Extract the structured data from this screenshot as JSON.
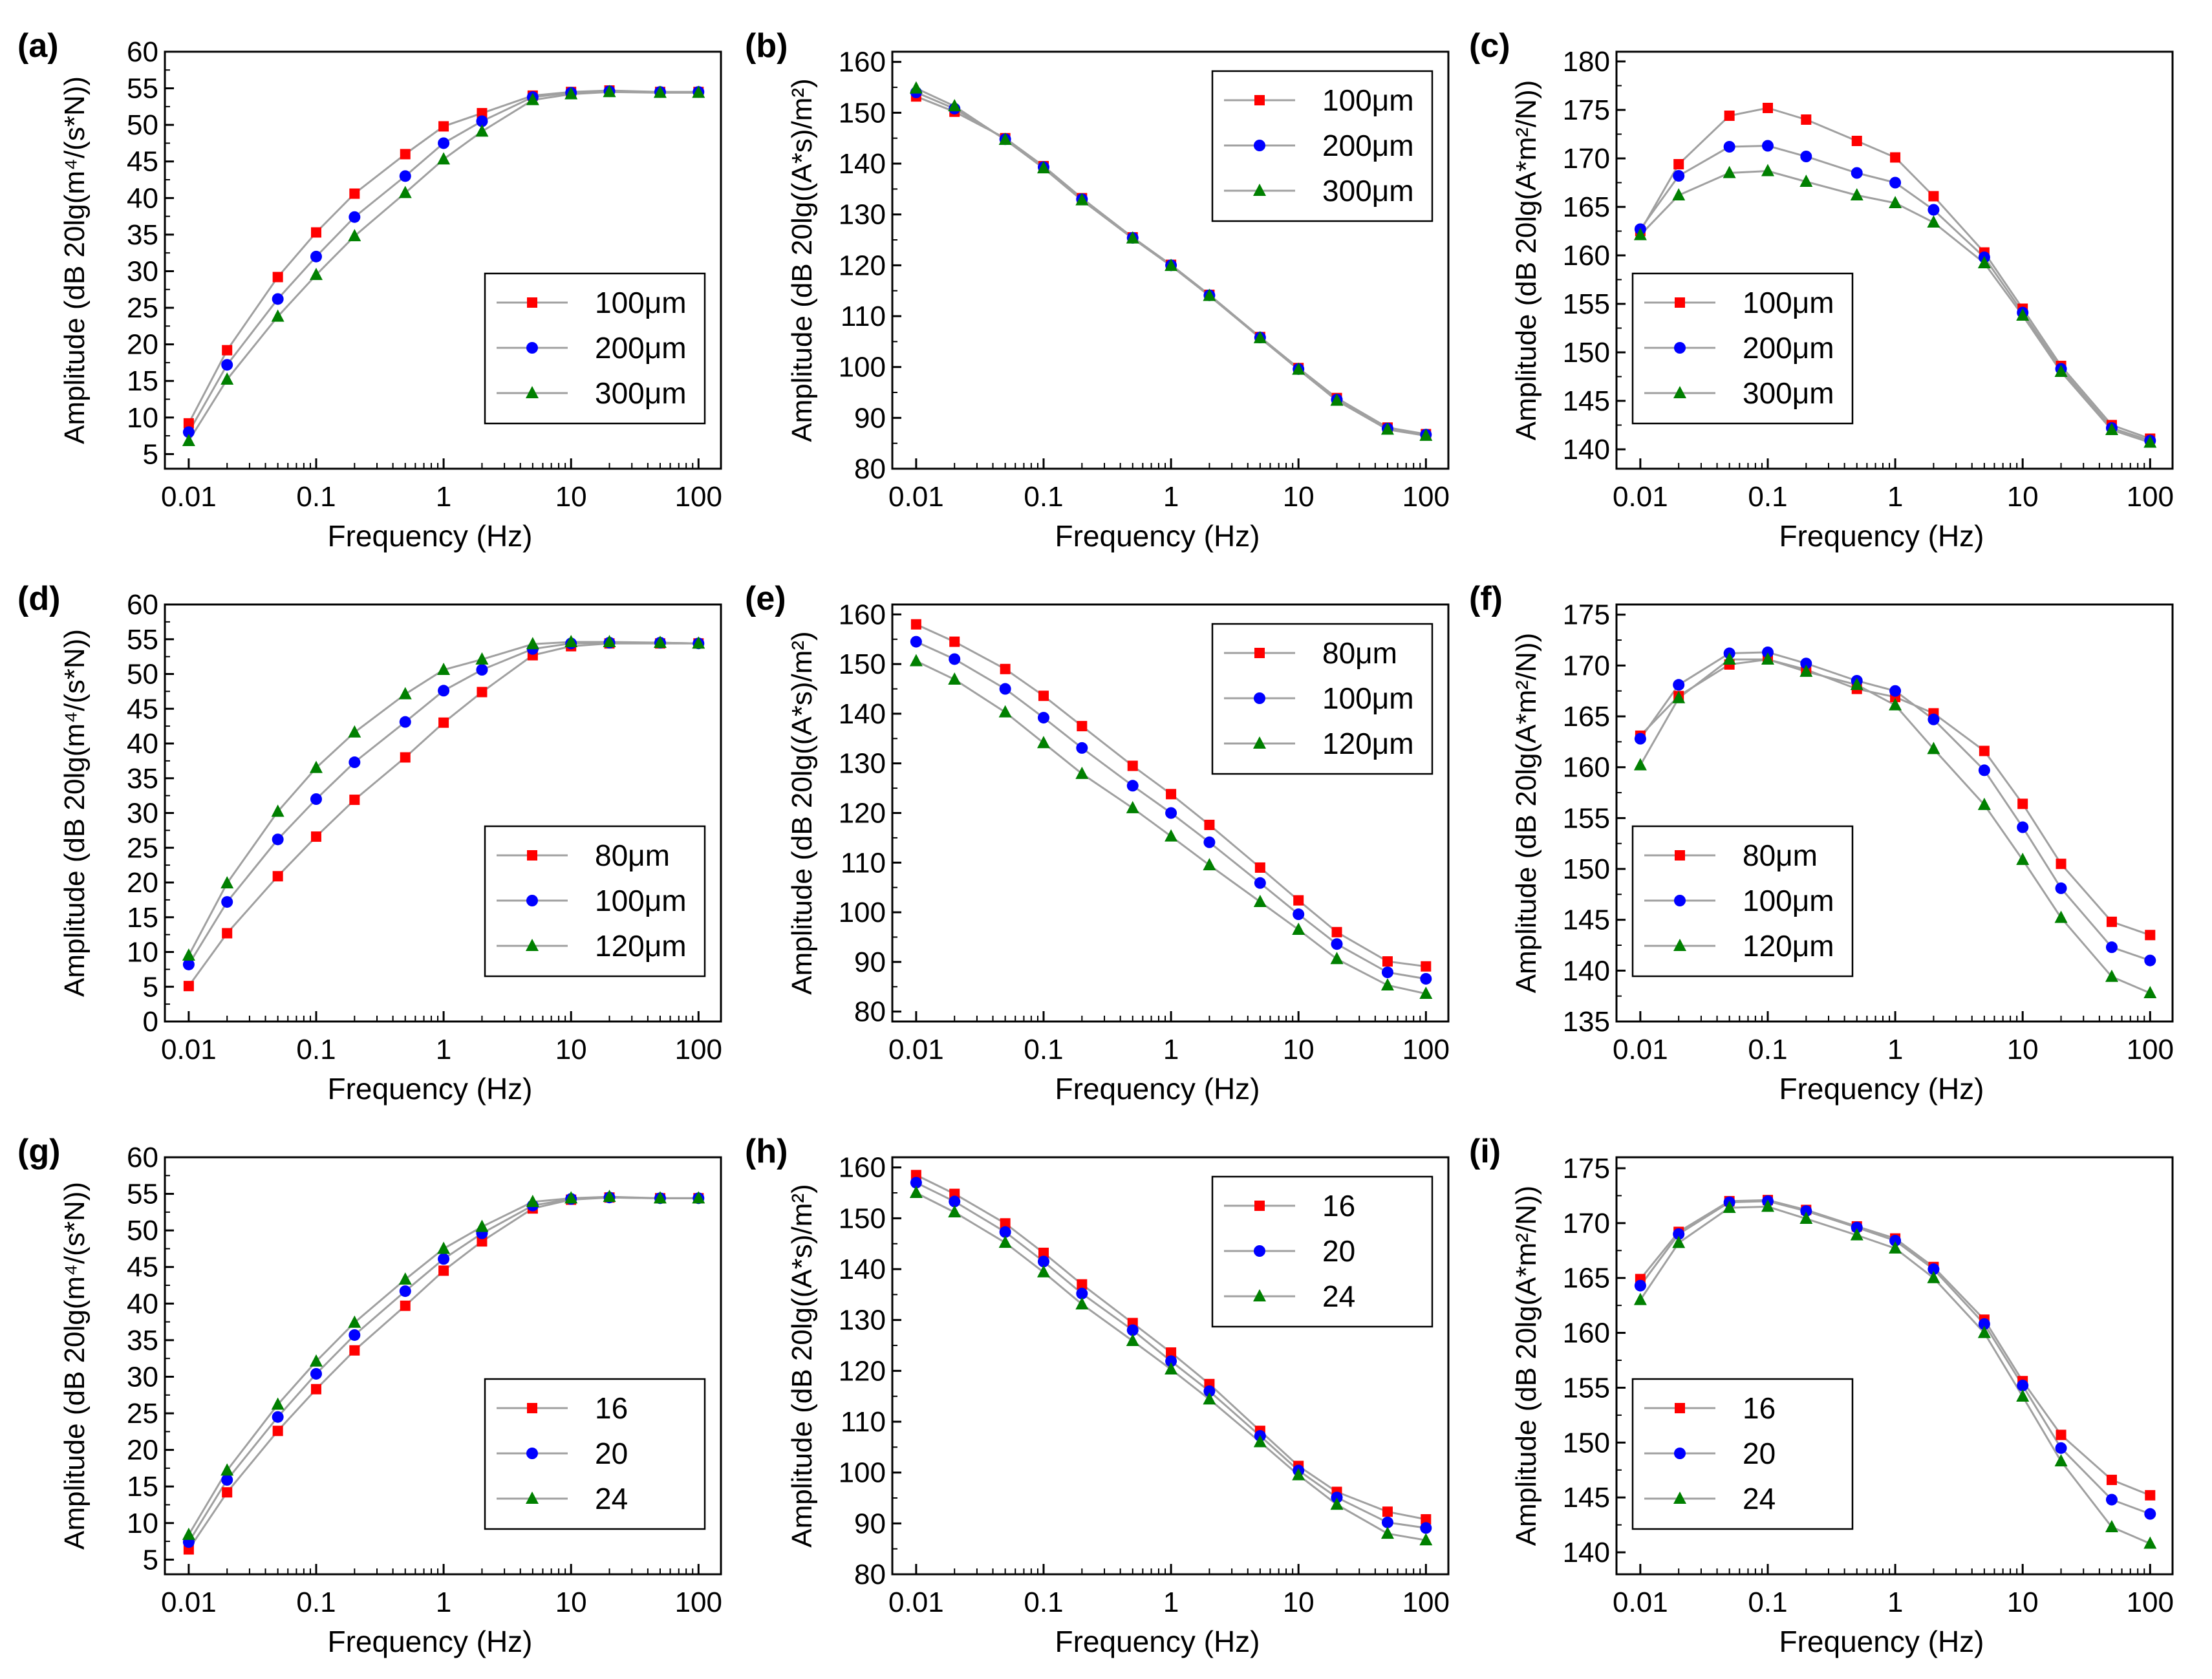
{
  "figure": {
    "colors": {
      "s0": "#ff0000",
      "s1": "#0000ff",
      "s2": "#008000",
      "line": "#a0a0a0",
      "axis": "#000000"
    },
    "markers": [
      "square",
      "circle",
      "triangle"
    ]
  },
  "chart_data": [
    {
      "id": "a",
      "panel_label": "(a)",
      "type": "line",
      "xlabel": "Frequency  (Hz)",
      "ylabel": "Amplitude  (dB  20lg(m⁴/(s*N))",
      "xscale": "log",
      "xlim": [
        0.0065,
        150
      ],
      "xticks": [
        0.01,
        0.1,
        1,
        10,
        100
      ],
      "xtick_labels": [
        "0.01",
        "0.1",
        "1",
        "10",
        "100"
      ],
      "ylim": [
        3,
        60
      ],
      "yticks": [
        5,
        10,
        15,
        20,
        25,
        30,
        35,
        40,
        45,
        50,
        55,
        60
      ],
      "x": [
        0.01,
        0.02,
        0.05,
        0.1,
        0.2,
        0.5,
        1,
        2,
        5,
        10,
        20,
        50,
        100
      ],
      "legend": {
        "position": "right-lower"
      },
      "series": [
        {
          "name": "100μm",
          "values": [
            9.2,
            19.2,
            29.2,
            35.3,
            40.6,
            46,
            49.8,
            51.6,
            54,
            54.5,
            54.7,
            54.5,
            54.5
          ]
        },
        {
          "name": "200μm",
          "values": [
            8,
            17.2,
            26.2,
            32,
            37.4,
            43,
            47.5,
            50.5,
            53.8,
            54.4,
            54.6,
            54.5,
            54.5
          ]
        },
        {
          "name": "300μm",
          "values": [
            6.8,
            15.2,
            23.8,
            29.5,
            34.8,
            40.7,
            45.3,
            49.1,
            53.4,
            54.2,
            54.5,
            54.4,
            54.4
          ]
        }
      ]
    },
    {
      "id": "b",
      "panel_label": "(b)",
      "type": "line",
      "xlabel": "Frequency  (Hz)",
      "ylabel": "Amplitude  (dB  20lg((A*s)/m²)",
      "xscale": "log",
      "xlim": [
        0.0065,
        150
      ],
      "xticks": [
        0.01,
        0.1,
        1,
        10,
        100
      ],
      "xtick_labels": [
        "0.01",
        "0.1",
        "1",
        "10",
        "100"
      ],
      "ylim": [
        80,
        162
      ],
      "yticks": [
        80,
        90,
        100,
        110,
        120,
        130,
        140,
        150,
        160
      ],
      "x": [
        0.01,
        0.02,
        0.05,
        0.1,
        0.2,
        0.5,
        1,
        2,
        5,
        10,
        20,
        50,
        100
      ],
      "legend": {
        "position": "top-right"
      },
      "series": [
        {
          "name": "100μm",
          "values": [
            153.2,
            150.2,
            145,
            139.5,
            133.2,
            125.5,
            120.1,
            114.2,
            105.9,
            99.8,
            93.9,
            88.1,
            86.8
          ]
        },
        {
          "name": "200μm",
          "values": [
            154,
            150.8,
            144.8,
            139.3,
            133,
            125.4,
            120,
            114.1,
            105.8,
            99.6,
            93.6,
            87.9,
            86.7
          ]
        },
        {
          "name": "300μm",
          "values": [
            154.8,
            151.3,
            144.7,
            139.1,
            132.8,
            125.3,
            119.9,
            114,
            105.7,
            99.5,
            93.4,
            87.7,
            86.5
          ]
        }
      ]
    },
    {
      "id": "c",
      "panel_label": "(c)",
      "type": "line",
      "xlabel": "Frequency  (Hz)",
      "ylabel": "Amplitude  (dB  20lg(A*m²/N))",
      "xscale": "log",
      "xlim": [
        0.0065,
        150
      ],
      "xticks": [
        0.01,
        0.1,
        1,
        10,
        100
      ],
      "xtick_labels": [
        "0.01",
        "0.1",
        "1",
        "10",
        "100"
      ],
      "ylim": [
        138,
        181
      ],
      "yticks": [
        140,
        145,
        150,
        155,
        160,
        165,
        170,
        175,
        180
      ],
      "x": [
        0.01,
        0.02,
        0.05,
        0.1,
        0.2,
        0.5,
        1,
        2,
        5,
        10,
        20,
        50,
        100
      ],
      "legend": {
        "position": "left-lower"
      },
      "series": [
        {
          "name": "100μm",
          "values": [
            162.5,
            169.4,
            174.4,
            175.2,
            174,
            171.8,
            170.1,
            166.1,
            160.3,
            154.5,
            148.6,
            142.5,
            141.1
          ]
        },
        {
          "name": "200μm",
          "values": [
            162.7,
            168.2,
            171.2,
            171.3,
            170.2,
            168.5,
            167.5,
            164.7,
            159.8,
            154.1,
            148.3,
            142.2,
            140.9
          ]
        },
        {
          "name": "300μm",
          "values": [
            162.1,
            166.2,
            168.5,
            168.7,
            167.6,
            166.2,
            165.4,
            163.4,
            159.2,
            153.8,
            148,
            142,
            140.7
          ]
        }
      ]
    },
    {
      "id": "d",
      "panel_label": "(d)",
      "type": "line",
      "xlabel": "Frequency  (Hz)",
      "ylabel": "Amplitude  (dB  20lg(m⁴/(s*N))",
      "xscale": "log",
      "xlim": [
        0.0065,
        150
      ],
      "xticks": [
        0.01,
        0.1,
        1,
        10,
        100
      ],
      "xtick_labels": [
        "0.01",
        "0.1",
        "1",
        "10",
        "100"
      ],
      "ylim": [
        0,
        60
      ],
      "yticks": [
        0,
        5,
        10,
        15,
        20,
        25,
        30,
        35,
        40,
        45,
        50,
        55,
        60
      ],
      "x": [
        0.01,
        0.02,
        0.05,
        0.1,
        0.2,
        0.5,
        1,
        2,
        5,
        10,
        20,
        50,
        100
      ],
      "legend": {
        "position": "right-lower"
      },
      "series": [
        {
          "name": "80μm",
          "values": [
            5.1,
            12.7,
            20.9,
            26.6,
            31.9,
            38,
            43,
            47.4,
            52.7,
            54,
            54.4,
            54.4,
            54.4
          ]
        },
        {
          "name": "100μm",
          "values": [
            8.2,
            17.2,
            26.2,
            32,
            37.3,
            43.1,
            47.6,
            50.6,
            53.6,
            54.4,
            54.5,
            54.5,
            54.4
          ]
        },
        {
          "name": "120μm",
          "values": [
            9.5,
            19.9,
            30.2,
            36.5,
            41.6,
            47.1,
            50.6,
            52.1,
            54.3,
            54.6,
            54.6,
            54.5,
            54.4
          ]
        }
      ]
    },
    {
      "id": "e",
      "panel_label": "(e)",
      "type": "line",
      "xlabel": "Frequency  (Hz)",
      "ylabel": "Amplitude  (dB  20lg((A*s)/m²)",
      "xscale": "log",
      "xlim": [
        0.0065,
        150
      ],
      "xticks": [
        0.01,
        0.1,
        1,
        10,
        100
      ],
      "xtick_labels": [
        "0.01",
        "0.1",
        "1",
        "10",
        "100"
      ],
      "ylim": [
        78,
        162
      ],
      "yticks": [
        80,
        90,
        100,
        110,
        120,
        130,
        140,
        150,
        160
      ],
      "x": [
        0.01,
        0.02,
        0.05,
        0.1,
        0.2,
        0.5,
        1,
        2,
        5,
        10,
        20,
        50,
        100
      ],
      "legend": {
        "position": "top-right"
      },
      "series": [
        {
          "name": "80μm",
          "values": [
            158,
            154.5,
            149,
            143.6,
            137.5,
            129.5,
            123.8,
            117.6,
            109,
            102.4,
            96,
            90.1,
            89.1
          ]
        },
        {
          "name": "100μm",
          "values": [
            154.5,
            151,
            145,
            139.2,
            133.1,
            125.5,
            120,
            114.1,
            105.9,
            99.6,
            93.6,
            87.9,
            86.6
          ]
        },
        {
          "name": "120μm",
          "values": [
            150.6,
            146.9,
            140.3,
            134.1,
            127.9,
            121,
            115.3,
            109.5,
            102.1,
            96.5,
            90.6,
            85.3,
            83.6
          ]
        }
      ]
    },
    {
      "id": "f",
      "panel_label": "(f)",
      "type": "line",
      "xlabel": "Frequency  (Hz)",
      "ylabel": "Amplitude  (dB  20lg(A*m²/N))",
      "xscale": "log",
      "xlim": [
        0.0065,
        150
      ],
      "xticks": [
        0.01,
        0.1,
        1,
        10,
        100
      ],
      "xtick_labels": [
        "0.01",
        "0.1",
        "1",
        "10",
        "100"
      ],
      "ylim": [
        135,
        176
      ],
      "yticks": [
        135,
        140,
        145,
        150,
        155,
        160,
        165,
        170,
        175
      ],
      "x": [
        0.01,
        0.02,
        0.05,
        0.1,
        0.2,
        0.5,
        1,
        2,
        5,
        10,
        20,
        50,
        100
      ],
      "legend": {
        "position": "left-lower"
      },
      "series": [
        {
          "name": "80μm",
          "values": [
            163.1,
            167,
            170.1,
            170.6,
            169.6,
            167.7,
            166.9,
            165.3,
            161.6,
            156.4,
            150.5,
            144.8,
            143.5
          ]
        },
        {
          "name": "100μm",
          "values": [
            162.8,
            168.1,
            171.2,
            171.3,
            170.2,
            168.5,
            167.5,
            164.7,
            159.7,
            154.1,
            148.1,
            142.3,
            141
          ]
        },
        {
          "name": "120μm",
          "values": [
            160.2,
            166.8,
            170.6,
            170.6,
            169.4,
            168.1,
            166.1,
            161.8,
            156.3,
            150.9,
            145.2,
            139.4,
            137.8
          ]
        }
      ]
    },
    {
      "id": "g",
      "panel_label": "(g)",
      "type": "line",
      "xlabel": "Frequency  (Hz)",
      "ylabel": "Amplitude  (dB  20lg(m⁴/(s*N))",
      "xscale": "log",
      "xlim": [
        0.0065,
        150
      ],
      "xticks": [
        0.01,
        0.1,
        1,
        10,
        100
      ],
      "xtick_labels": [
        "0.01",
        "0.1",
        "1",
        "10",
        "100"
      ],
      "ylim": [
        3,
        60
      ],
      "yticks": [
        5,
        10,
        15,
        20,
        25,
        30,
        35,
        40,
        45,
        50,
        55,
        60
      ],
      "x": [
        0.01,
        0.02,
        0.05,
        0.1,
        0.2,
        0.5,
        1,
        2,
        5,
        10,
        20,
        50,
        100
      ],
      "legend": {
        "position": "right-lower"
      },
      "series": [
        {
          "name": "16",
          "values": [
            6.4,
            14.2,
            22.6,
            28.3,
            33.6,
            39.7,
            44.5,
            48.5,
            53,
            54.2,
            54.5,
            54.4,
            54.4
          ]
        },
        {
          "name": "20",
          "values": [
            7.4,
            15.9,
            24.5,
            30.4,
            35.7,
            41.7,
            46.1,
            49.6,
            53.4,
            54.3,
            54.5,
            54.4,
            54.4
          ]
        },
        {
          "name": "24",
          "values": [
            8.4,
            17.2,
            26.2,
            32.1,
            37.4,
            43.3,
            47.5,
            50.5,
            53.9,
            54.4,
            54.6,
            54.4,
            54.4
          ]
        }
      ]
    },
    {
      "id": "h",
      "panel_label": "(h)",
      "type": "line",
      "xlabel": "Frequency  (Hz)",
      "ylabel": "Amplitude  (dB  20lg((A*s)/m²)",
      "xscale": "log",
      "xlim": [
        0.0065,
        150
      ],
      "xticks": [
        0.01,
        0.1,
        1,
        10,
        100
      ],
      "xtick_labels": [
        "0.01",
        "0.1",
        "1",
        "10",
        "100"
      ],
      "ylim": [
        80,
        162
      ],
      "yticks": [
        80,
        90,
        100,
        110,
        120,
        130,
        140,
        150,
        160
      ],
      "x": [
        0.01,
        0.02,
        0.05,
        0.1,
        0.2,
        0.5,
        1,
        2,
        5,
        10,
        20,
        50,
        100
      ],
      "legend": {
        "position": "top-right"
      },
      "series": [
        {
          "name": "16",
          "values": [
            158.5,
            154.8,
            149,
            143.2,
            137,
            129.4,
            123.6,
            117.4,
            108.2,
            101.3,
            96.2,
            92.3,
            90.8
          ]
        },
        {
          "name": "20",
          "values": [
            157,
            153.3,
            147.3,
            141.5,
            135.2,
            128,
            121.9,
            116,
            107.2,
            100.4,
            95.1,
            90.2,
            89.1
          ]
        },
        {
          "name": "24",
          "values": [
            155,
            151.2,
            145.2,
            139.4,
            133.1,
            125.9,
            120.3,
            114.4,
            106,
            99.5,
            93.7,
            88,
            86.7
          ]
        }
      ]
    },
    {
      "id": "i",
      "panel_label": "(i)",
      "type": "line",
      "xlabel": "Frequency  (Hz)",
      "ylabel": "Amplitude  (dB  20lg(A*m²/N))",
      "xscale": "log",
      "xlim": [
        0.0065,
        150
      ],
      "xticks": [
        0.01,
        0.1,
        1,
        10,
        100
      ],
      "xtick_labels": [
        "0.01",
        "0.1",
        "1",
        "10",
        "100"
      ],
      "ylim": [
        138,
        176
      ],
      "yticks": [
        140,
        145,
        150,
        155,
        160,
        165,
        170,
        175
      ],
      "x": [
        0.01,
        0.02,
        0.05,
        0.1,
        0.2,
        0.5,
        1,
        2,
        5,
        10,
        20,
        50,
        100
      ],
      "legend": {
        "position": "left-lower"
      },
      "series": [
        {
          "name": "16",
          "values": [
            164.9,
            169.2,
            172,
            172.1,
            171.2,
            169.7,
            168.6,
            166,
            161.2,
            155.6,
            150.7,
            146.6,
            145.2
          ]
        },
        {
          "name": "20",
          "values": [
            164.3,
            169,
            171.9,
            172,
            171.1,
            169.6,
            168.4,
            165.8,
            160.8,
            155.2,
            149.5,
            144.8,
            143.5
          ]
        },
        {
          "name": "24",
          "values": [
            163,
            168.2,
            171.4,
            171.5,
            170.4,
            168.9,
            167.7,
            165,
            160,
            154.2,
            148.3,
            142.3,
            140.8
          ]
        }
      ]
    }
  ]
}
